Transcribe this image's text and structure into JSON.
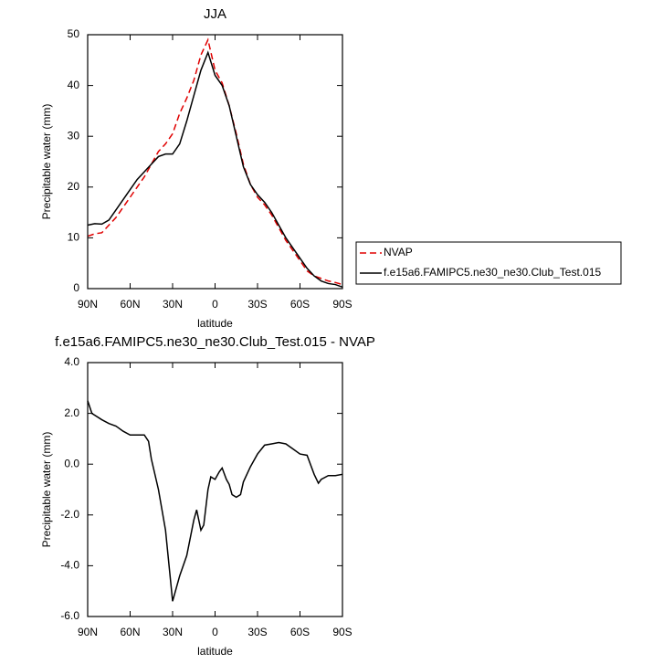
{
  "chart_data": [
    {
      "type": "line",
      "title": "JJA",
      "xlabel": "latitude",
      "ylabel": "Precipitable water (mm)",
      "x": [
        90,
        85,
        80,
        75,
        70,
        65,
        60,
        55,
        50,
        45,
        40,
        35,
        30,
        25,
        20,
        15,
        10,
        5,
        0,
        -5,
        -10,
        -15,
        -20,
        -25,
        -30,
        -35,
        -40,
        -45,
        -50,
        -55,
        -60,
        -65,
        -70,
        -75,
        -80,
        -85,
        -90
      ],
      "series": [
        {
          "name": "NVAP",
          "color": "#e00000",
          "dash": true,
          "values": [
            10.3,
            10.8,
            11,
            12.5,
            14,
            16,
            18,
            20,
            22,
            24.5,
            27,
            28.5,
            30.5,
            34.5,
            37.5,
            41,
            46,
            49,
            43,
            40.5,
            36,
            30.5,
            24.5,
            20.5,
            18,
            16.5,
            14.5,
            12,
            9.5,
            7.5,
            5.5,
            3.5,
            2.5,
            2,
            1.5,
            1.2,
            0.8
          ]
        },
        {
          "name": "f.e15a6.FAMIPC5.ne30_ne30.Club_Test.015",
          "color": "#000000",
          "dash": false,
          "values": [
            12.5,
            12.8,
            12.7,
            13.5,
            15.5,
            17.5,
            19.5,
            21.5,
            23,
            24.5,
            26,
            26.5,
            26.5,
            28.5,
            33,
            38,
            43,
            46.5,
            42,
            40,
            36,
            30,
            24,
            20.5,
            18.5,
            17,
            15,
            12.5,
            10,
            8,
            6,
            4,
            2.5,
            1.5,
            1,
            0.8,
            0.3
          ]
        }
      ],
      "xlim": [
        90,
        -90
      ],
      "xticks": [
        {
          "value": 90,
          "label": "90N"
        },
        {
          "value": 60,
          "label": "60N"
        },
        {
          "value": 30,
          "label": "30N"
        },
        0,
        {
          "value": -30,
          "label": "30S"
        },
        {
          "value": -60,
          "label": "60S"
        },
        {
          "value": -90,
          "label": "90S"
        }
      ],
      "ylim": [
        0,
        50
      ],
      "yticks": [
        0,
        10,
        20,
        30,
        40,
        50
      ],
      "legend": "right"
    },
    {
      "type": "line",
      "title": "f.e15a6.FAMIPC5.ne30_ne30.Club_Test.015 - NVAP",
      "xlabel": "latitude",
      "ylabel": "Precipitable water (mm)",
      "x": [
        90,
        87,
        80,
        75,
        70,
        65,
        60,
        55,
        50,
        47,
        45,
        40,
        35,
        30,
        25,
        20,
        15,
        13,
        10,
        8,
        5,
        3,
        0,
        -3,
        -5,
        -8,
        -10,
        -12,
        -15,
        -18,
        -20,
        -25,
        -30,
        -35,
        -40,
        -45,
        -50,
        -55,
        -60,
        -65,
        -70,
        -73,
        -75,
        -80,
        -85,
        -90
      ],
      "series": [
        {
          "color": "#000000",
          "dash": false,
          "values": [
            2.5,
            2.0,
            1.75,
            1.6,
            1.5,
            1.3,
            1.15,
            1.15,
            1.15,
            0.9,
            0.2,
            -1.0,
            -2.6,
            -5.4,
            -4.4,
            -3.6,
            -2.2,
            -1.8,
            -2.6,
            -2.4,
            -1.0,
            -0.5,
            -0.6,
            -0.3,
            -0.15,
            -0.6,
            -0.8,
            -1.2,
            -1.3,
            -1.2,
            -0.7,
            -0.1,
            0.4,
            0.75,
            0.8,
            0.85,
            0.8,
            0.6,
            0.4,
            0.35,
            -0.4,
            -0.75,
            -0.6,
            -0.45,
            -0.45,
            -0.4
          ]
        }
      ],
      "xlim": [
        90,
        -90
      ],
      "xticks": [
        {
          "value": 90,
          "label": "90N"
        },
        {
          "value": 60,
          "label": "60N"
        },
        {
          "value": 30,
          "label": "30N"
        },
        0,
        {
          "value": -30,
          "label": "30S"
        },
        {
          "value": -60,
          "label": "60S"
        },
        {
          "value": -90,
          "label": "90S"
        }
      ],
      "ylim": [
        -6,
        4
      ],
      "yticks": [
        {
          "value": -6,
          "label": "-6.0"
        },
        {
          "value": -4,
          "label": "-4.0"
        },
        {
          "value": -2,
          "label": "-2.0"
        },
        {
          "value": 0,
          "label": "0.0"
        },
        {
          "value": 2,
          "label": "2.0"
        },
        {
          "value": 4,
          "label": "4.0"
        }
      ]
    }
  ]
}
